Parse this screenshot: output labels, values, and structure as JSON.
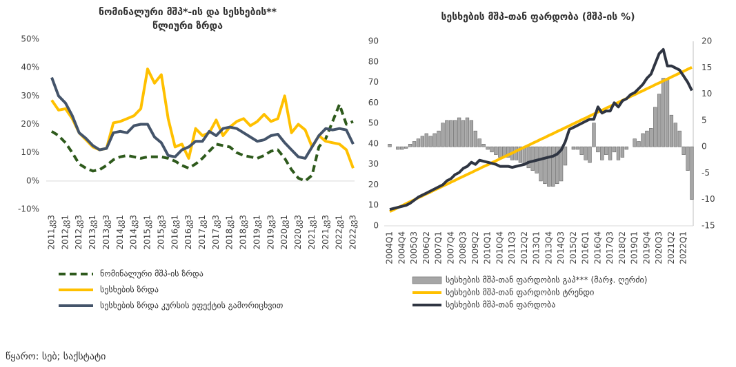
{
  "chart_data": [
    {
      "type": "line",
      "title": "ნომინალური მშპ*-ის და სესხების**",
      "subtitle": "წლიური ზრდა",
      "categories": [
        "2011კვ3",
        null,
        "2012კვ1",
        null,
        "2012კვ3",
        null,
        "2013კვ1",
        null,
        "2013კვ3",
        null,
        "2014კვ1",
        null,
        "2014კვ3",
        null,
        "2015კვ1",
        null,
        "2015კვ3",
        null,
        "2016კვ1",
        null,
        "2016კვ3",
        null,
        "2017კვ1",
        null,
        "2017კვ3",
        null,
        "2018კვ1",
        null,
        "2018კვ3",
        null,
        "2019კვ1",
        null,
        "2019კვ3",
        null,
        "2020კვ1",
        null,
        "2020კვ3",
        null,
        "2021კვ1",
        null,
        "2021კვ3",
        null,
        "2022კვ1",
        null,
        "2022კვ3"
      ],
      "series": [
        {
          "name": "ნომინალური მშპ-ის ზრდა",
          "color": "#2e5a1c",
          "dashed": true,
          "values": [
            17.5,
            16,
            13.5,
            10,
            6,
            4.5,
            3.5,
            4,
            5.5,
            7.5,
            8.5,
            9,
            8.5,
            8,
            8.5,
            8.5,
            8.5,
            8,
            7,
            5.5,
            4.5,
            6,
            8,
            10.5,
            13,
            12.5,
            12,
            10,
            9,
            8.5,
            8,
            9,
            10.5,
            11,
            8,
            4,
            1,
            0,
            2,
            12,
            15,
            21,
            27,
            20,
            21
          ]
        },
        {
          "name": "სესხების ზრდა",
          "color": "#ffc000",
          "values": [
            28.5,
            25,
            25.5,
            22,
            17,
            14.5,
            12,
            11,
            11.5,
            20.5,
            21,
            22,
            23,
            25.5,
            39.5,
            34.5,
            37.5,
            22,
            12,
            13,
            8,
            18.5,
            16,
            17,
            21.5,
            16,
            19,
            21,
            22,
            19.5,
            21,
            23.5,
            21,
            22,
            30,
            17,
            20,
            18,
            12,
            16,
            14,
            13.5,
            13,
            11,
            4.5
          ]
        },
        {
          "name": "სესხების ზრდა კურსის ეფექტის გამორიცხვით",
          "color": "#44546a",
          "values": [
            36.5,
            30,
            27.5,
            23,
            17,
            15,
            12.5,
            11,
            11.5,
            17,
            17.5,
            17,
            19.5,
            20,
            20,
            15.5,
            13.5,
            9,
            8.5,
            11,
            12,
            14,
            14,
            17.5,
            16,
            18.5,
            19,
            18.5,
            17,
            15.5,
            14,
            14.5,
            16,
            16.5,
            13.5,
            11,
            8.5,
            8,
            12,
            16,
            18.5,
            18,
            18.5,
            18,
            13
          ]
        }
      ],
      "ylim": [
        -10,
        50
      ],
      "yticks": [
        {
          "value": 50,
          "label": "50%"
        },
        {
          "value": 40,
          "label": "40%"
        },
        {
          "value": 30,
          "label": "30%"
        },
        {
          "value": 20,
          "label": "20%"
        },
        {
          "value": 10,
          "label": "10%"
        },
        {
          "value": 0,
          "label": "0%"
        },
        {
          "value": -10,
          "label": "-10%"
        }
      ]
    },
    {
      "type": "combo",
      "title": "სესხების მშპ-თან ფარდობა (მშპ-ის %)",
      "categories": [
        "2004Q1",
        null,
        null,
        "2004Q4",
        null,
        null,
        "2005Q3",
        null,
        null,
        "2006Q2",
        null,
        null,
        "2007Q1",
        null,
        null,
        "2007Q4",
        null,
        null,
        "2008Q3",
        null,
        null,
        "2009Q2",
        null,
        null,
        "2010Q1",
        null,
        null,
        "2010Q4",
        null,
        null,
        "2011Q3",
        null,
        null,
        "2012Q2",
        null,
        null,
        "2013Q1",
        null,
        null,
        "2013Q4",
        null,
        null,
        "2014Q3",
        null,
        null,
        "2015Q2",
        null,
        null,
        "2016Q1",
        null,
        null,
        "2016Q4",
        null,
        null,
        "2017Q3",
        null,
        null,
        "2018Q2",
        null,
        null,
        "2019Q1",
        null,
        null,
        "2019Q4",
        null,
        null,
        "2020Q3",
        null,
        null,
        "2021Q2",
        null,
        null,
        "2022Q1",
        null,
        null
      ],
      "series": [
        {
          "name": "სესხების მშპ-თან ფარდობის გაპ*** (მარჯ. ღერძი)",
          "type": "bar",
          "axis": "y2",
          "color": "#a6a6a6",
          "values": [
            0.5,
            0,
            -0.5,
            -0.5,
            -0.3,
            0.5,
            1,
            1.5,
            2,
            2.5,
            2,
            2.5,
            3,
            4.5,
            5,
            5,
            5,
            5.5,
            5,
            5.5,
            5,
            3,
            1.5,
            0.5,
            -0.5,
            -1,
            -1.5,
            -2,
            -2,
            -2,
            -2.5,
            -2.5,
            -3,
            -3.5,
            -4,
            -4.5,
            -5,
            -6.5,
            -7,
            -7.5,
            -7.5,
            -7,
            -6.5,
            -3.5,
            0,
            -0.5,
            -0.5,
            -1.5,
            -2.5,
            -3,
            4.5,
            -1,
            -2.5,
            -1.5,
            -2.5,
            -1,
            -2.5,
            -2,
            -0.5,
            0,
            1.5,
            1,
            2.5,
            3,
            3.5,
            7.5,
            10,
            13,
            13,
            6,
            4.5,
            3,
            -1.5,
            -4.5,
            -10
          ]
        },
        {
          "name": "სესხების მშპ-თან ფარდობის ტრენდი",
          "type": "line",
          "color": "#ffc000",
          "values": [
            7.0,
            7.9,
            8.9,
            9.8,
            10.8,
            11.8,
            12.7,
            13.7,
            14.6,
            15.6,
            16.5,
            17.5,
            18.4,
            19.4,
            20.3,
            21.3,
            22.2,
            23.2,
            24.1,
            25.1,
            26.0,
            27.0,
            27.9,
            28.9,
            29.8,
            30.8,
            31.7,
            32.7,
            33.6,
            34.6,
            35.5,
            36.5,
            37.4,
            38.4,
            39.3,
            40.3,
            41.2,
            42.2,
            43.1,
            44.1,
            45.0,
            46.0,
            46.9,
            47.9,
            48.8,
            49.8,
            50.7,
            51.7,
            52.6,
            53.6,
            54.5,
            55.5,
            56.4,
            57.4,
            58.3,
            59.3,
            60.2,
            61.2,
            62.1,
            63.1,
            64.0,
            65.0,
            65.9,
            66.9,
            67.8,
            68.8,
            69.7,
            70.7,
            71.6,
            72.6,
            73.5,
            74.5,
            75.4,
            76.4,
            77.3
          ]
        },
        {
          "name": "სესხების მშპ-თან ფარდობა",
          "type": "line",
          "color": "#2f3542",
          "values": [
            8,
            8.5,
            9,
            9.5,
            10,
            11,
            12.5,
            14,
            15,
            16,
            17,
            18,
            19,
            20,
            22,
            23,
            25,
            26,
            28,
            29,
            31,
            30,
            32,
            31.5,
            31,
            30.5,
            30,
            29,
            29,
            29,
            28.5,
            29,
            29.5,
            30,
            31,
            31.5,
            32,
            32.5,
            33,
            33.5,
            34,
            35,
            37,
            41,
            47,
            48,
            49,
            50,
            51,
            52,
            52,
            58,
            55,
            56,
            56,
            60,
            58,
            61,
            62,
            64,
            65,
            67,
            69,
            72,
            74,
            79,
            84,
            86,
            78,
            78,
            77,
            76,
            73,
            70,
            66
          ]
        }
      ],
      "ylim": [
        0,
        90
      ],
      "yticks": [
        0,
        10,
        20,
        30,
        40,
        50,
        60,
        70,
        80,
        90
      ],
      "y2lim": [
        -15,
        20
      ],
      "y2ticks": [
        -15,
        -10,
        -5,
        0,
        5,
        10,
        15,
        20
      ]
    }
  ],
  "source": "წყარო: სებ; საქსტატი"
}
